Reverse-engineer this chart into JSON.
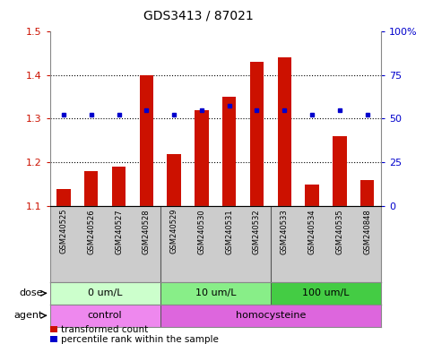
{
  "title": "GDS3413 / 87021",
  "samples": [
    "GSM240525",
    "GSM240526",
    "GSM240527",
    "GSM240528",
    "GSM240529",
    "GSM240530",
    "GSM240531",
    "GSM240532",
    "GSM240533",
    "GSM240534",
    "GSM240535",
    "GSM240848"
  ],
  "red_values": [
    1.14,
    1.18,
    1.19,
    1.4,
    1.22,
    1.32,
    1.35,
    1.43,
    1.44,
    1.15,
    1.26,
    1.16
  ],
  "blue_values": [
    1.31,
    1.31,
    1.31,
    1.32,
    1.31,
    1.32,
    1.33,
    1.32,
    1.32,
    1.31,
    1.32,
    1.31
  ],
  "ylim_left": [
    1.1,
    1.5
  ],
  "ylim_right": [
    0,
    100
  ],
  "yticks_left": [
    1.1,
    1.2,
    1.3,
    1.4,
    1.5
  ],
  "yticks_right": [
    0,
    25,
    50,
    75,
    100
  ],
  "ytick_labels_left": [
    "1.1",
    "1.2",
    "1.3",
    "1.4",
    "1.5"
  ],
  "ytick_labels_right": [
    "0",
    "25",
    "50",
    "75",
    "100%"
  ],
  "hlines": [
    1.2,
    1.3,
    1.4
  ],
  "bar_color": "#cc1100",
  "dot_color": "#0000cc",
  "dose_groups": [
    {
      "label": "0 um/L",
      "start": 0,
      "end": 4,
      "color": "#ccffcc"
    },
    {
      "label": "10 um/L",
      "start": 4,
      "end": 8,
      "color": "#88ee88"
    },
    {
      "label": "100 um/L",
      "start": 8,
      "end": 12,
      "color": "#44cc44"
    }
  ],
  "agent_groups": [
    {
      "label": "control",
      "start": 0,
      "end": 4,
      "color": "#ee88ee"
    },
    {
      "label": "homocysteine",
      "start": 4,
      "end": 12,
      "color": "#dd66dd"
    }
  ],
  "dose_label": "dose",
  "agent_label": "agent",
  "legend_items": [
    {
      "color": "#cc1100",
      "label": "transformed count"
    },
    {
      "color": "#0000cc",
      "label": "percentile rank within the sample"
    }
  ],
  "bar_width": 0.5,
  "bg_color": "#ffffff",
  "sample_area_bg": "#cccccc",
  "group_dividers": [
    3.5,
    7.5
  ]
}
